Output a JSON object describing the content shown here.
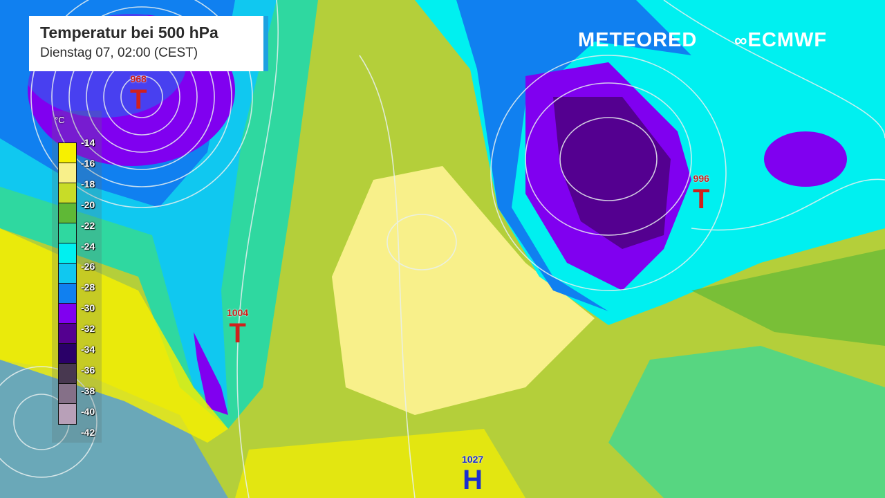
{
  "header": {
    "title": "Temperatur bei 500 hPa",
    "subtitle": "Dienstag 07, 02:00 (CEST)"
  },
  "branding": {
    "logo1": "METEORED",
    "logo2": "ECMWF"
  },
  "legend": {
    "unit": "°C",
    "labels": [
      "-14",
      "-16",
      "-18",
      "-20",
      "-22",
      "-24",
      "-26",
      "-28",
      "-30",
      "-32",
      "-34",
      "-36",
      "-38",
      "-40",
      "-42"
    ],
    "colors": [
      "#f7f000",
      "#f8f08a",
      "#c8dc28",
      "#5fb836",
      "#2fd8a0",
      "#00f0f0",
      "#10c8f0",
      "#1080f0",
      "#8000f0",
      "#540090",
      "#2a0068",
      "#483850",
      "#857088",
      "#b8a0b8"
    ]
  },
  "pressure_centers": [
    {
      "type": "T",
      "value": "968"
    },
    {
      "type": "T",
      "value": "1004"
    },
    {
      "type": "T",
      "value": "996"
    },
    {
      "type": "H",
      "value": "1027"
    }
  ],
  "colors": {
    "low": "#d0201c",
    "high": "#1a2ed0",
    "title_accent": "#1da1e0"
  }
}
